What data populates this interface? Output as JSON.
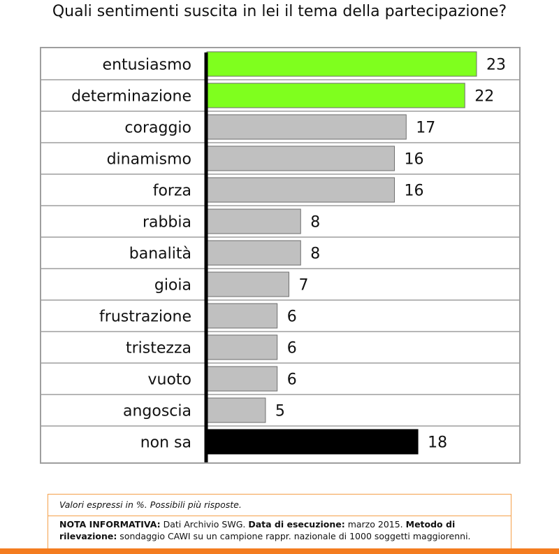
{
  "title": "Quali sentimenti suscita in lei il tema della partecipazione?",
  "chart_data": {
    "type": "bar",
    "orientation": "horizontal",
    "title": "Quali sentimenti suscita in lei il tema della partecipazione?",
    "categories": [
      "entusiasmo",
      "determinazione",
      "coraggio",
      "dinamismo",
      "forza",
      "rabbia",
      "banalità",
      "gioia",
      "frustrazione",
      "tristezza",
      "vuoto",
      "angoscia",
      "non sa"
    ],
    "values": [
      23,
      22,
      17,
      16,
      16,
      8,
      8,
      7,
      6,
      6,
      6,
      5,
      18
    ],
    "bar_colors": [
      "#7fff1e",
      "#7fff1e",
      "#c0c0c0",
      "#c0c0c0",
      "#c0c0c0",
      "#c0c0c0",
      "#c0c0c0",
      "#c0c0c0",
      "#c0c0c0",
      "#c0c0c0",
      "#c0c0c0",
      "#c0c0c0",
      "#000000"
    ],
    "xlim": [
      0,
      23
    ],
    "grid": "horizontal row separators",
    "xlabel": "",
    "ylabel": ""
  },
  "notes": {
    "values_note": "Valori espressi in %. Possibili più risposte.",
    "info_label": "NOTA INFORMATIVA:",
    "info_text": " Dati Archivio SWG. ",
    "date_label": "Data di esecuzione:",
    "date_text": " marzo 2015. ",
    "method_label": "Metodo di rilevazione:",
    "method_text": " sondaggio CAWI su un campione rappr. nazionale di 1000 soggetti maggiorenni."
  },
  "colors": {
    "accent_orange": "#f47c20",
    "note_border": "#f5a04a",
    "highlight_green": "#7fff1e",
    "bar_gray": "#c0c0c0",
    "bar_black": "#000000"
  }
}
